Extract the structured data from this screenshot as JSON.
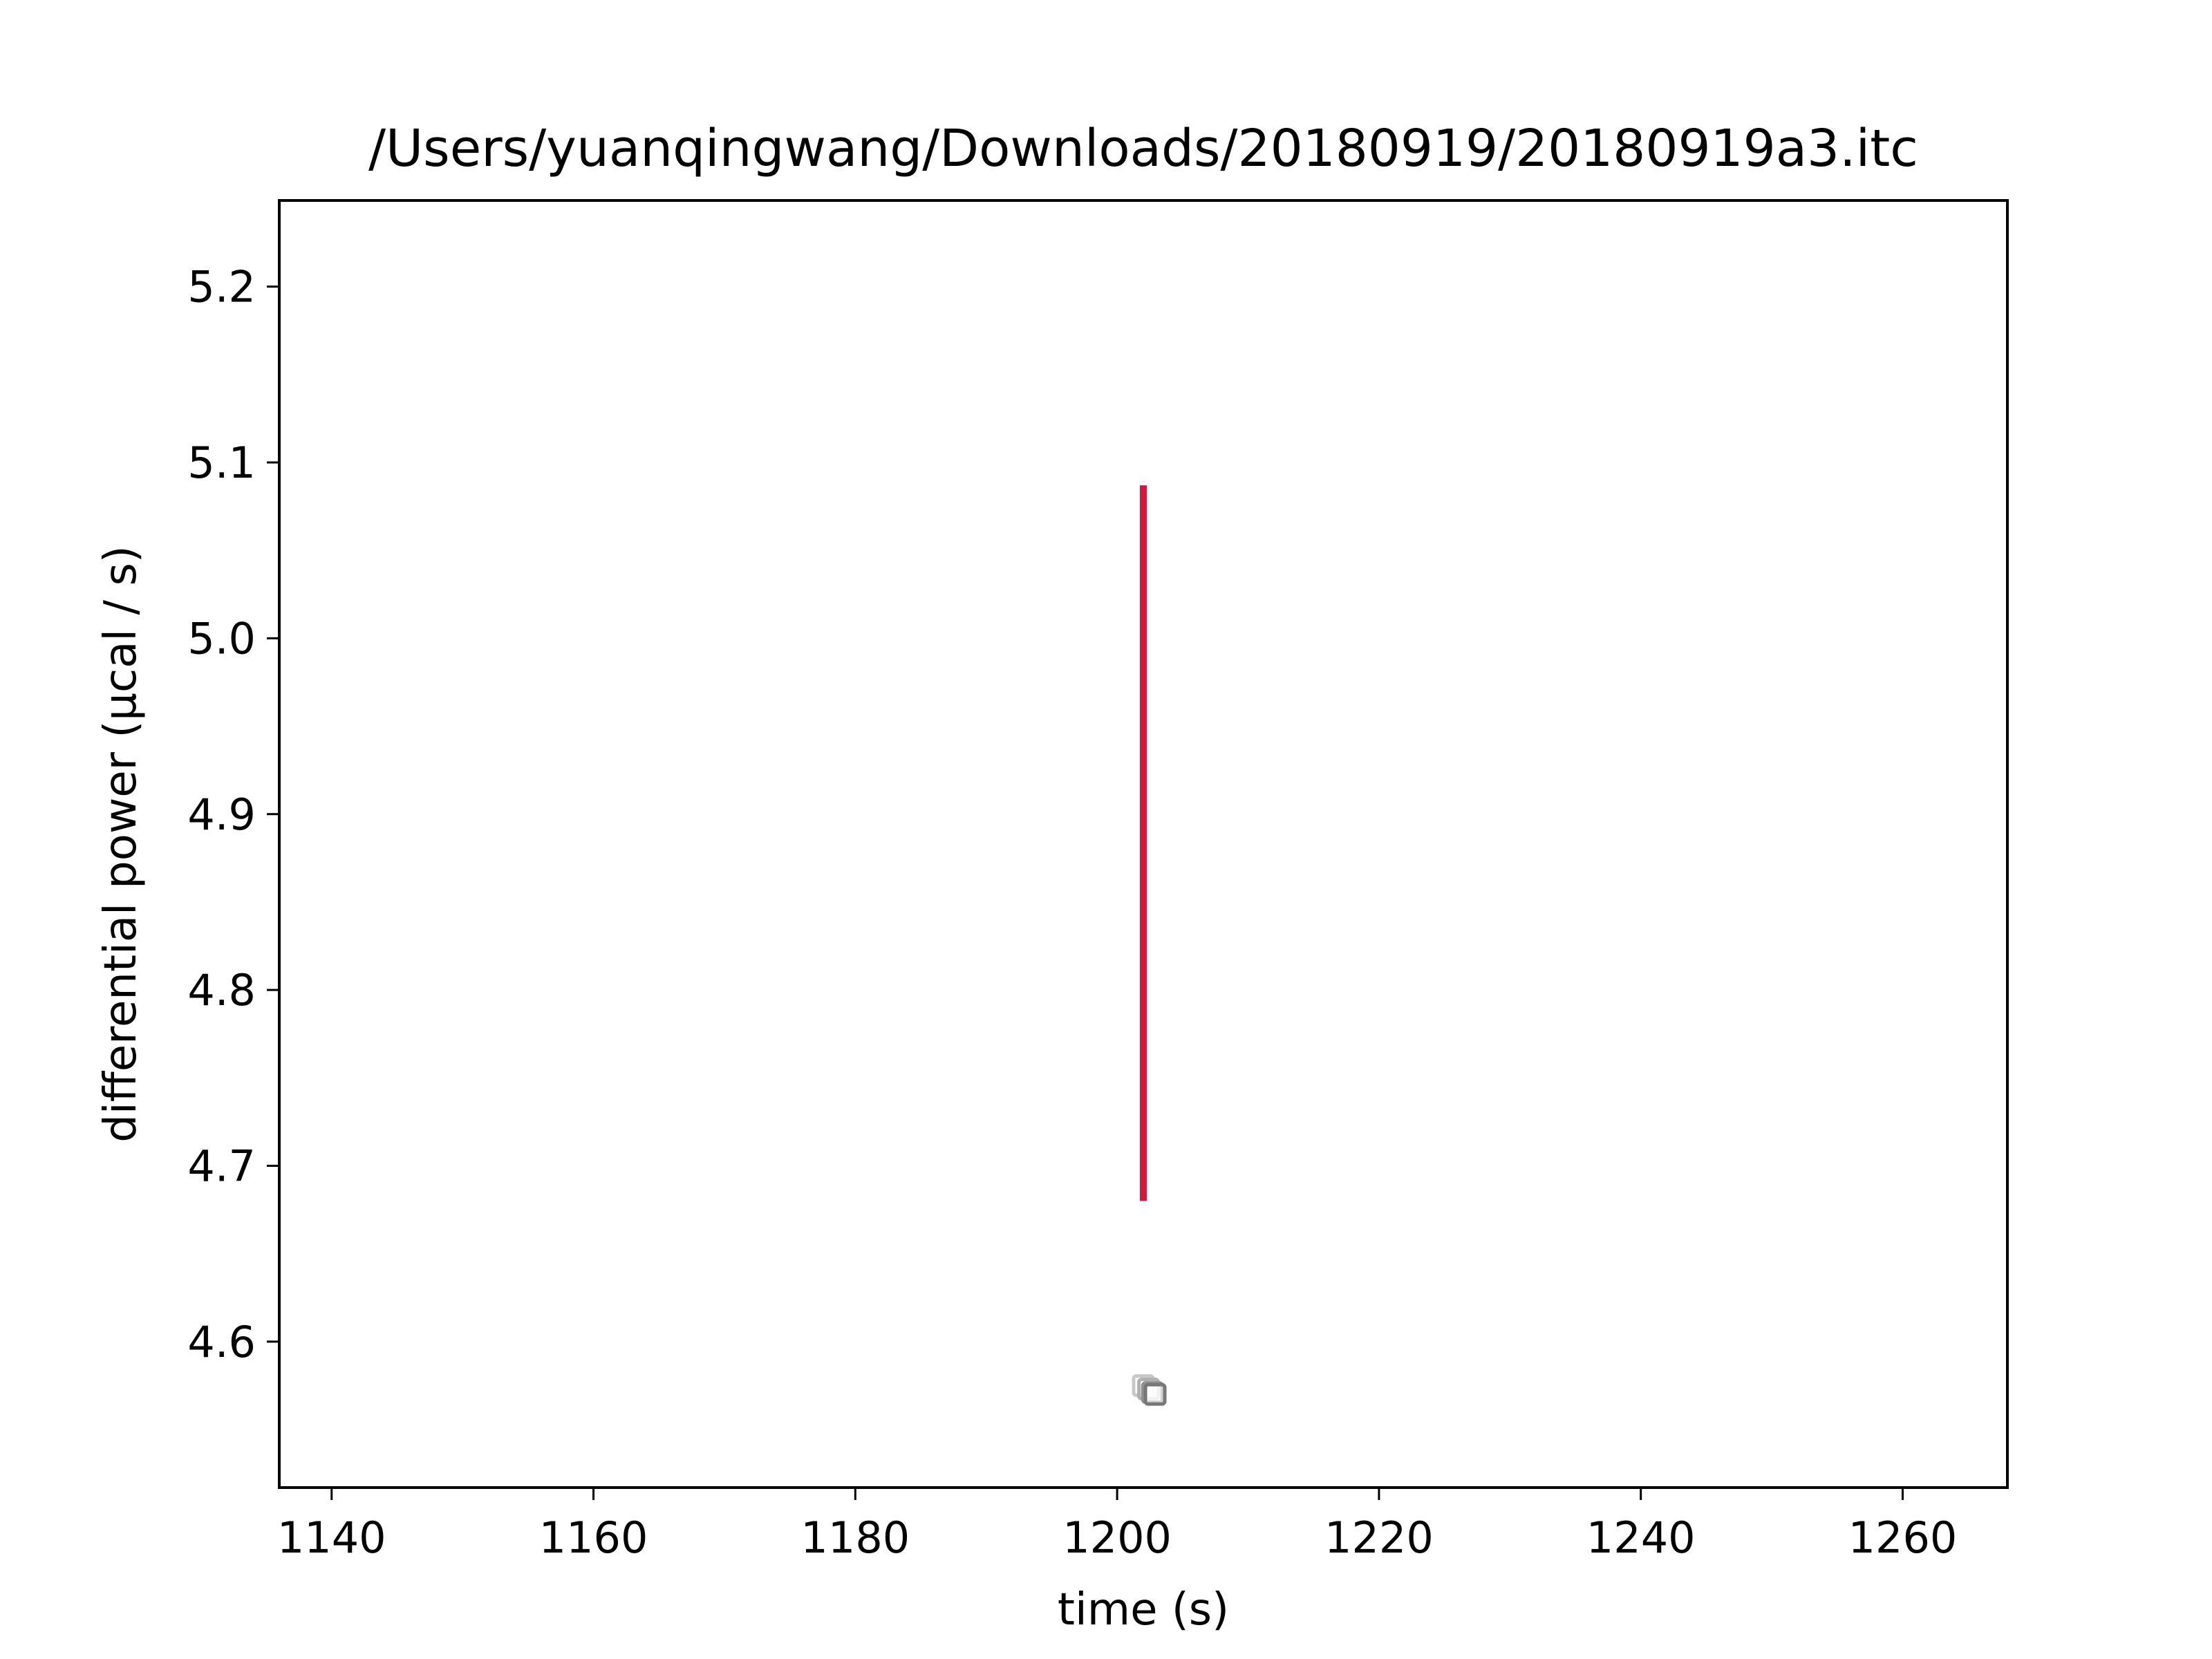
{
  "chart_data": {
    "type": "scatter",
    "title": "/Users/yuanqingwang/Downloads/20180919/20180919a3.itc",
    "xlabel": "time (s)",
    "ylabel": "differential power (μcal / s)",
    "xlim": [
      1136,
      1268
    ],
    "ylim": [
      4.517,
      5.249
    ],
    "xticks": [
      1140,
      1160,
      1180,
      1200,
      1220,
      1240,
      1260
    ],
    "yticks": [
      4.6,
      4.7,
      4.8,
      4.9,
      5.0,
      5.1,
      5.2
    ],
    "xtick_labels": [
      "1140",
      "1160",
      "1180",
      "1200",
      "1220",
      "1240",
      "1260"
    ],
    "ytick_labels": [
      "4.6",
      "4.7",
      "4.8",
      "4.9",
      "5.0",
      "5.1",
      "5.2"
    ],
    "grid": false,
    "injection_marker": {
      "x": 1202,
      "y_start": 4.68,
      "y_end": 5.087,
      "color": "#dc143c"
    },
    "points": [
      {
        "x": 1202.0,
        "y": 4.575,
        "color": "#c8c8c8"
      },
      {
        "x": 1202.4,
        "y": 4.573,
        "color": "#b0b0b0"
      },
      {
        "x": 1202.7,
        "y": 4.571,
        "color": "#909090"
      },
      {
        "x": 1202.9,
        "y": 4.57,
        "color": "#777777"
      }
    ]
  }
}
